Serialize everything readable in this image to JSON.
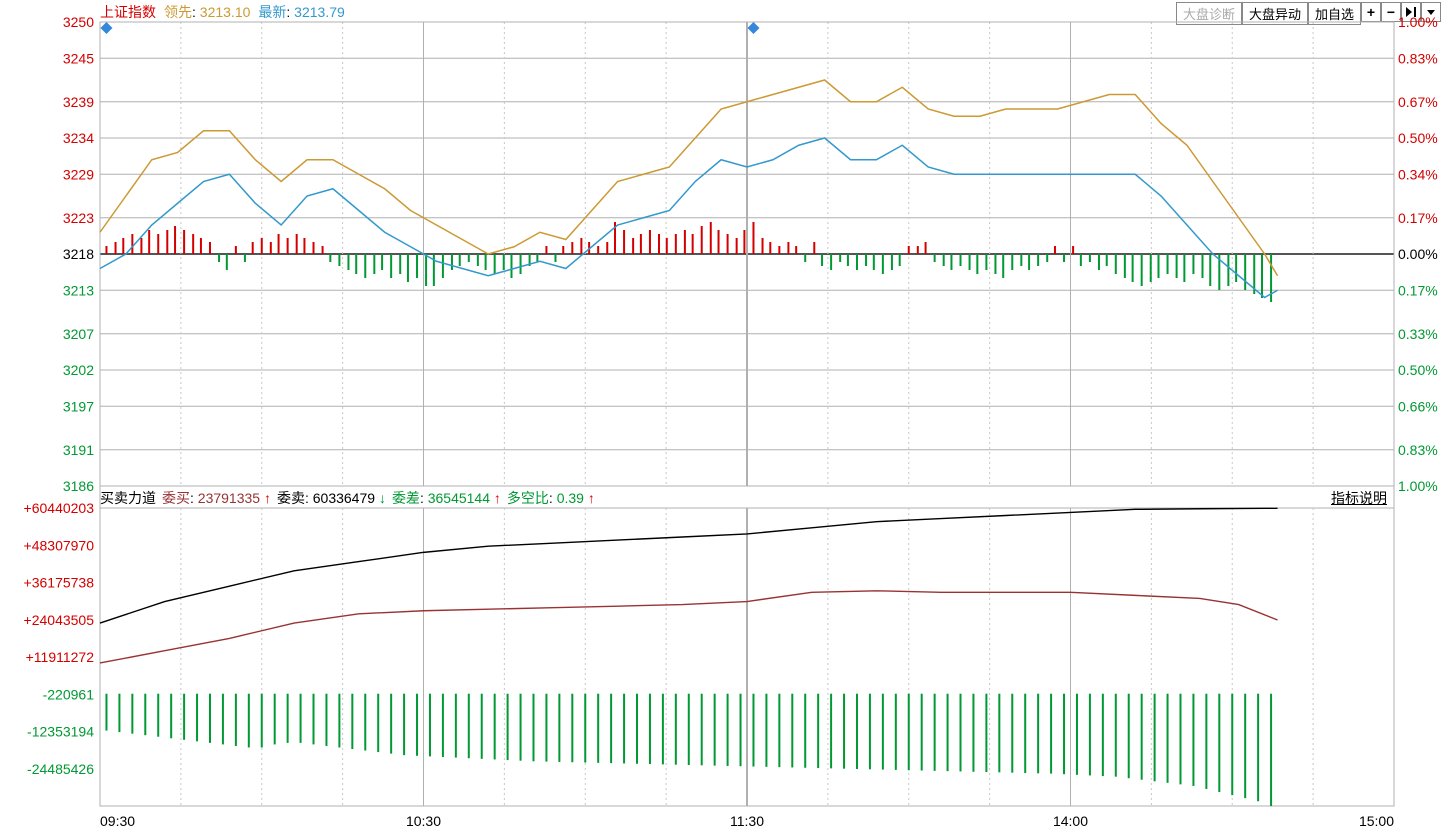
{
  "colors": {
    "red": "#d40000",
    "green": "#009933",
    "orange": "#cc9933",
    "blue": "#3399cc",
    "black": "#000000",
    "darkred": "#993333",
    "grid": "#b0b0b0",
    "grid_dash": "#c8c8c8",
    "baseline": "#555555",
    "border": "#888888",
    "diamond": "#3388dd"
  },
  "header": {
    "title": "上证指数",
    "leading_label": "领先",
    "leading_value": "3213.10",
    "latest_label": "最新",
    "latest_value": "3213.79",
    "buttons": {
      "diagnosis": "大盘诊断",
      "movement": "大盘异动",
      "addself": "加自选"
    }
  },
  "mainChart": {
    "leftAxis": {
      "ticks": [
        3250,
        3245,
        3239,
        3234,
        3229,
        3223,
        3218,
        3213,
        3207,
        3202,
        3197,
        3191,
        3186
      ],
      "tick_colors": [
        "red",
        "red",
        "red",
        "red",
        "red",
        "red",
        "black",
        "green",
        "green",
        "green",
        "green",
        "green",
        "green"
      ],
      "baseline": 3218
    },
    "rightAxis": {
      "ticks": [
        "1.00%",
        "0.83%",
        "0.67%",
        "0.50%",
        "0.34%",
        "0.17%",
        "0.00%",
        "0.17%",
        "0.33%",
        "0.50%",
        "0.66%",
        "0.83%",
        "1.00%"
      ],
      "tick_colors": [
        "red",
        "red",
        "red",
        "red",
        "red",
        "red",
        "black",
        "green",
        "green",
        "green",
        "green",
        "green",
        "green"
      ]
    },
    "xAxis": {
      "labels": [
        "09:30",
        "10:30",
        "11:30",
        "14:00",
        "15:00"
      ],
      "label_positions_t": [
        0,
        0.25,
        0.5,
        0.75,
        1.0
      ]
    },
    "line_orange": [
      [
        0,
        3221
      ],
      [
        0.02,
        3226
      ],
      [
        0.04,
        3231
      ],
      [
        0.06,
        3232
      ],
      [
        0.08,
        3235
      ],
      [
        0.1,
        3235
      ],
      [
        0.12,
        3231
      ],
      [
        0.14,
        3228
      ],
      [
        0.16,
        3231
      ],
      [
        0.18,
        3231
      ],
      [
        0.2,
        3229
      ],
      [
        0.22,
        3227
      ],
      [
        0.24,
        3224
      ],
      [
        0.26,
        3222
      ],
      [
        0.28,
        3220
      ],
      [
        0.3,
        3218
      ],
      [
        0.32,
        3219
      ],
      [
        0.34,
        3221
      ],
      [
        0.36,
        3220
      ],
      [
        0.38,
        3224
      ],
      [
        0.4,
        3228
      ],
      [
        0.42,
        3229
      ],
      [
        0.44,
        3230
      ],
      [
        0.46,
        3234
      ],
      [
        0.48,
        3238
      ],
      [
        0.5,
        3239
      ],
      [
        0.52,
        3240
      ],
      [
        0.54,
        3241
      ],
      [
        0.56,
        3242
      ],
      [
        0.58,
        3239
      ],
      [
        0.6,
        3239
      ],
      [
        0.62,
        3241
      ],
      [
        0.64,
        3238
      ],
      [
        0.66,
        3237
      ],
      [
        0.68,
        3237
      ],
      [
        0.7,
        3238
      ],
      [
        0.72,
        3238
      ],
      [
        0.74,
        3238
      ],
      [
        0.76,
        3239
      ],
      [
        0.78,
        3240
      ],
      [
        0.8,
        3240
      ],
      [
        0.82,
        3236
      ],
      [
        0.84,
        3233
      ],
      [
        0.86,
        3228
      ],
      [
        0.88,
        3223
      ],
      [
        0.9,
        3218
      ],
      [
        0.91,
        3215
      ]
    ],
    "line_blue": [
      [
        0,
        3216
      ],
      [
        0.02,
        3218
      ],
      [
        0.04,
        3222
      ],
      [
        0.06,
        3225
      ],
      [
        0.08,
        3228
      ],
      [
        0.1,
        3229
      ],
      [
        0.12,
        3225
      ],
      [
        0.14,
        3222
      ],
      [
        0.16,
        3226
      ],
      [
        0.18,
        3227
      ],
      [
        0.2,
        3224
      ],
      [
        0.22,
        3221
      ],
      [
        0.24,
        3219
      ],
      [
        0.26,
        3217
      ],
      [
        0.28,
        3216
      ],
      [
        0.3,
        3215
      ],
      [
        0.32,
        3216
      ],
      [
        0.34,
        3217
      ],
      [
        0.36,
        3216
      ],
      [
        0.38,
        3219
      ],
      [
        0.4,
        3222
      ],
      [
        0.42,
        3223
      ],
      [
        0.44,
        3224
      ],
      [
        0.46,
        3228
      ],
      [
        0.48,
        3231
      ],
      [
        0.5,
        3230
      ],
      [
        0.52,
        3231
      ],
      [
        0.54,
        3233
      ],
      [
        0.56,
        3234
      ],
      [
        0.58,
        3231
      ],
      [
        0.6,
        3231
      ],
      [
        0.62,
        3233
      ],
      [
        0.64,
        3230
      ],
      [
        0.66,
        3229
      ],
      [
        0.68,
        3229
      ],
      [
        0.7,
        3229
      ],
      [
        0.72,
        3229
      ],
      [
        0.74,
        3229
      ],
      [
        0.76,
        3229
      ],
      [
        0.78,
        3229
      ],
      [
        0.8,
        3229
      ],
      [
        0.82,
        3226
      ],
      [
        0.84,
        3222
      ],
      [
        0.86,
        3218
      ],
      [
        0.88,
        3215
      ],
      [
        0.9,
        3212
      ],
      [
        0.91,
        3213
      ]
    ],
    "bars": [
      [
        0.005,
        2
      ],
      [
        0.012,
        3
      ],
      [
        0.018,
        4
      ],
      [
        0.025,
        5
      ],
      [
        0.032,
        4
      ],
      [
        0.038,
        6
      ],
      [
        0.045,
        5
      ],
      [
        0.052,
        6
      ],
      [
        0.058,
        7
      ],
      [
        0.065,
        6
      ],
      [
        0.072,
        5
      ],
      [
        0.078,
        4
      ],
      [
        0.085,
        3
      ],
      [
        0.092,
        -2
      ],
      [
        0.098,
        -4
      ],
      [
        0.105,
        2
      ],
      [
        0.112,
        -2
      ],
      [
        0.118,
        3
      ],
      [
        0.125,
        4
      ],
      [
        0.132,
        3
      ],
      [
        0.138,
        5
      ],
      [
        0.145,
        4
      ],
      [
        0.152,
        5
      ],
      [
        0.158,
        4
      ],
      [
        0.165,
        3
      ],
      [
        0.172,
        2
      ],
      [
        0.178,
        -2
      ],
      [
        0.185,
        -3
      ],
      [
        0.192,
        -4
      ],
      [
        0.198,
        -5
      ],
      [
        0.205,
        -6
      ],
      [
        0.212,
        -5
      ],
      [
        0.218,
        -4
      ],
      [
        0.225,
        -6
      ],
      [
        0.232,
        -5
      ],
      [
        0.238,
        -7
      ],
      [
        0.245,
        -6
      ],
      [
        0.252,
        -8
      ],
      [
        0.258,
        -8
      ],
      [
        0.265,
        -6
      ],
      [
        0.272,
        -4
      ],
      [
        0.278,
        -3
      ],
      [
        0.285,
        -2
      ],
      [
        0.292,
        -3
      ],
      [
        0.298,
        -4
      ],
      [
        0.305,
        -5
      ],
      [
        0.312,
        -4
      ],
      [
        0.318,
        -6
      ],
      [
        0.325,
        -5
      ],
      [
        0.332,
        -3
      ],
      [
        0.338,
        -2
      ],
      [
        0.345,
        2
      ],
      [
        0.352,
        -2
      ],
      [
        0.358,
        2
      ],
      [
        0.365,
        3
      ],
      [
        0.372,
        4
      ],
      [
        0.378,
        3
      ],
      [
        0.385,
        2
      ],
      [
        0.392,
        3
      ],
      [
        0.398,
        8
      ],
      [
        0.405,
        6
      ],
      [
        0.412,
        4
      ],
      [
        0.418,
        5
      ],
      [
        0.425,
        6
      ],
      [
        0.432,
        5
      ],
      [
        0.438,
        4
      ],
      [
        0.445,
        5
      ],
      [
        0.452,
        6
      ],
      [
        0.458,
        5
      ],
      [
        0.465,
        7
      ],
      [
        0.472,
        8
      ],
      [
        0.478,
        6
      ],
      [
        0.485,
        5
      ],
      [
        0.492,
        4
      ],
      [
        0.498,
        6
      ],
      [
        0.505,
        8
      ],
      [
        0.512,
        4
      ],
      [
        0.518,
        3
      ],
      [
        0.525,
        2
      ],
      [
        0.532,
        3
      ],
      [
        0.538,
        2
      ],
      [
        0.545,
        -2
      ],
      [
        0.552,
        3
      ],
      [
        0.558,
        -3
      ],
      [
        0.565,
        -4
      ],
      [
        0.572,
        -2
      ],
      [
        0.578,
        -3
      ],
      [
        0.585,
        -4
      ],
      [
        0.592,
        -3
      ],
      [
        0.598,
        -4
      ],
      [
        0.605,
        -5
      ],
      [
        0.612,
        -4
      ],
      [
        0.618,
        -3
      ],
      [
        0.625,
        2
      ],
      [
        0.632,
        2
      ],
      [
        0.638,
        3
      ],
      [
        0.645,
        -2
      ],
      [
        0.652,
        -3
      ],
      [
        0.658,
        -4
      ],
      [
        0.665,
        -3
      ],
      [
        0.672,
        -4
      ],
      [
        0.678,
        -5
      ],
      [
        0.685,
        -4
      ],
      [
        0.692,
        -5
      ],
      [
        0.698,
        -6
      ],
      [
        0.705,
        -4
      ],
      [
        0.712,
        -3
      ],
      [
        0.718,
        -4
      ],
      [
        0.725,
        -3
      ],
      [
        0.732,
        -2
      ],
      [
        0.738,
        2
      ],
      [
        0.745,
        -2
      ],
      [
        0.752,
        2
      ],
      [
        0.758,
        -3
      ],
      [
        0.765,
        -2
      ],
      [
        0.772,
        -4
      ],
      [
        0.778,
        -3
      ],
      [
        0.785,
        -5
      ],
      [
        0.792,
        -6
      ],
      [
        0.798,
        -7
      ],
      [
        0.805,
        -8
      ],
      [
        0.812,
        -7
      ],
      [
        0.818,
        -6
      ],
      [
        0.825,
        -5
      ],
      [
        0.832,
        -6
      ],
      [
        0.838,
        -7
      ],
      [
        0.845,
        -5
      ],
      [
        0.852,
        -6
      ],
      [
        0.858,
        -8
      ],
      [
        0.865,
        -9
      ],
      [
        0.872,
        -8
      ],
      [
        0.878,
        -7
      ],
      [
        0.885,
        -9
      ],
      [
        0.892,
        -10
      ],
      [
        0.898,
        -11
      ],
      [
        0.905,
        -12
      ]
    ],
    "diamonds_t": [
      0.005,
      0.505
    ]
  },
  "subChart": {
    "header": {
      "title": "买卖力道",
      "buy_label": "委买",
      "buy_value": "23791335",
      "sell_label": "委卖",
      "sell_value": "60336479",
      "diff_label": "委差",
      "diff_value": "36545144",
      "ratio_label": "多空比",
      "ratio_value": "0.39",
      "legend_btn": "指标说明"
    },
    "leftAxis": {
      "ticks": [
        "+60440203",
        "+48307970",
        "+36175738",
        "+24043505",
        "+11911272",
        "-220961",
        "-12353194",
        "-24485426"
      ],
      "tick_colors": [
        "red",
        "red",
        "red",
        "red",
        "red",
        "green",
        "green",
        "green"
      ],
      "tick_values": [
        60440203,
        48307970,
        36175738,
        24043505,
        11911272,
        -220961,
        -12353194,
        -24485426
      ]
    },
    "line_black": [
      [
        0,
        23000000
      ],
      [
        0.05,
        30000000
      ],
      [
        0.1,
        35000000
      ],
      [
        0.15,
        40000000
      ],
      [
        0.2,
        43000000
      ],
      [
        0.25,
        46000000
      ],
      [
        0.3,
        48000000
      ],
      [
        0.35,
        49000000
      ],
      [
        0.4,
        50000000
      ],
      [
        0.45,
        51000000
      ],
      [
        0.5,
        52000000
      ],
      [
        0.55,
        54000000
      ],
      [
        0.6,
        56000000
      ],
      [
        0.65,
        57000000
      ],
      [
        0.7,
        58000000
      ],
      [
        0.75,
        59000000
      ],
      [
        0.8,
        60000000
      ],
      [
        0.85,
        60200000
      ],
      [
        0.9,
        60336479
      ],
      [
        0.91,
        60336479
      ]
    ],
    "line_darkred": [
      [
        0,
        10000000
      ],
      [
        0.05,
        14000000
      ],
      [
        0.1,
        18000000
      ],
      [
        0.15,
        23000000
      ],
      [
        0.2,
        26000000
      ],
      [
        0.25,
        27000000
      ],
      [
        0.3,
        27500000
      ],
      [
        0.35,
        28000000
      ],
      [
        0.4,
        28500000
      ],
      [
        0.45,
        29000000
      ],
      [
        0.5,
        30000000
      ],
      [
        0.55,
        33000000
      ],
      [
        0.6,
        33500000
      ],
      [
        0.65,
        33000000
      ],
      [
        0.7,
        33000000
      ],
      [
        0.75,
        33000000
      ],
      [
        0.8,
        32000000
      ],
      [
        0.85,
        31000000
      ],
      [
        0.88,
        29000000
      ],
      [
        0.91,
        24000000
      ]
    ],
    "bars_green_start": -12000000,
    "bars_green": [
      [
        0.005,
        -12000000
      ],
      [
        0.015,
        -12500000
      ],
      [
        0.025,
        -13000000
      ],
      [
        0.035,
        -13500000
      ],
      [
        0.045,
        -14000000
      ],
      [
        0.055,
        -14500000
      ],
      [
        0.065,
        -15000000
      ],
      [
        0.075,
        -15500000
      ],
      [
        0.085,
        -16000000
      ],
      [
        0.095,
        -16500000
      ],
      [
        0.105,
        -17000000
      ],
      [
        0.115,
        -17500000
      ],
      [
        0.125,
        -17500000
      ],
      [
        0.135,
        -16500000
      ],
      [
        0.145,
        -16000000
      ],
      [
        0.155,
        -16000000
      ],
      [
        0.165,
        -16500000
      ],
      [
        0.175,
        -17000000
      ],
      [
        0.185,
        -17500000
      ],
      [
        0.195,
        -18000000
      ],
      [
        0.205,
        -18500000
      ],
      [
        0.215,
        -19000000
      ],
      [
        0.225,
        -19500000
      ],
      [
        0.235,
        -20000000
      ],
      [
        0.245,
        -20200000
      ],
      [
        0.255,
        -20400000
      ],
      [
        0.265,
        -20600000
      ],
      [
        0.275,
        -20800000
      ],
      [
        0.285,
        -21000000
      ],
      [
        0.295,
        -21200000
      ],
      [
        0.305,
        -21400000
      ],
      [
        0.315,
        -21600000
      ],
      [
        0.325,
        -21800000
      ],
      [
        0.335,
        -22000000
      ],
      [
        0.345,
        -22100000
      ],
      [
        0.355,
        -22200000
      ],
      [
        0.365,
        -22300000
      ],
      [
        0.375,
        -22400000
      ],
      [
        0.385,
        -22500000
      ],
      [
        0.395,
        -22600000
      ],
      [
        0.405,
        -22700000
      ],
      [
        0.415,
        -22800000
      ],
      [
        0.425,
        -22900000
      ],
      [
        0.435,
        -23000000
      ],
      [
        0.445,
        -23100000
      ],
      [
        0.455,
        -23200000
      ],
      [
        0.465,
        -23300000
      ],
      [
        0.475,
        -23400000
      ],
      [
        0.485,
        -23500000
      ],
      [
        0.495,
        -23600000
      ],
      [
        0.505,
        -23700000
      ],
      [
        0.515,
        -23800000
      ],
      [
        0.525,
        -23900000
      ],
      [
        0.535,
        -24000000
      ],
      [
        0.545,
        -24100000
      ],
      [
        0.555,
        -24200000
      ],
      [
        0.565,
        -24300000
      ],
      [
        0.575,
        -24400000
      ],
      [
        0.585,
        -24500000
      ],
      [
        0.595,
        -24600000
      ],
      [
        0.605,
        -24700000
      ],
      [
        0.615,
        -24800000
      ],
      [
        0.625,
        -24900000
      ],
      [
        0.635,
        -25000000
      ],
      [
        0.645,
        -25100000
      ],
      [
        0.655,
        -25200000
      ],
      [
        0.665,
        -25300000
      ],
      [
        0.675,
        -25400000
      ],
      [
        0.685,
        -25500000
      ],
      [
        0.695,
        -25600000
      ],
      [
        0.705,
        -25700000
      ],
      [
        0.715,
        -25800000
      ],
      [
        0.725,
        -25900000
      ],
      [
        0.735,
        -26000000
      ],
      [
        0.745,
        -26200000
      ],
      [
        0.755,
        -26400000
      ],
      [
        0.765,
        -26600000
      ],
      [
        0.775,
        -26800000
      ],
      [
        0.785,
        -27000000
      ],
      [
        0.795,
        -27500000
      ],
      [
        0.805,
        -28000000
      ],
      [
        0.815,
        -28500000
      ],
      [
        0.825,
        -29000000
      ],
      [
        0.835,
        -29500000
      ],
      [
        0.845,
        -30000000
      ],
      [
        0.855,
        -31000000
      ],
      [
        0.865,
        -32000000
      ],
      [
        0.875,
        -33000000
      ],
      [
        0.885,
        -34000000
      ],
      [
        0.895,
        -35000000
      ],
      [
        0.905,
        -36545144
      ]
    ]
  },
  "layout": {
    "leftAxisWidth": 100,
    "rightAxisWidth": 55,
    "topHeaderHeight": 22,
    "mainChartTop": 22,
    "mainChartHeight": 464,
    "subChartTop": 486,
    "subHeaderHeight": 22,
    "subChartPlotTop": 508,
    "subChartHeight": 298,
    "xAxisTop": 806,
    "plotLeft": 100,
    "plotWidth": 1294,
    "totalWidth": 1449
  }
}
